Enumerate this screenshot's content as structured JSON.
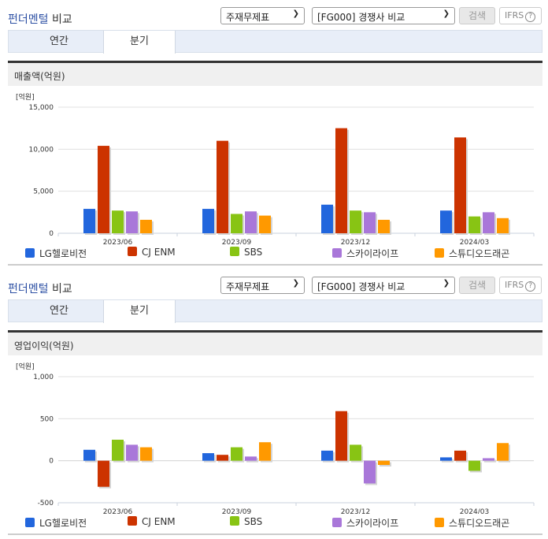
{
  "sections": [
    {
      "title_accent": "펀더멘털",
      "title_rest": "비교",
      "select1": "주재무제표",
      "select2": "[FG000] 경쟁사 비교",
      "search_label": "검색",
      "ifrs_label": "IFRS",
      "help_icon": "?",
      "tabs": [
        {
          "label": "연간"
        },
        {
          "label": "분기"
        }
      ],
      "active_tab": "분기",
      "panel_title": "매출액(억원)"
    },
    {
      "title_accent": "펀더멘털",
      "title_rest": "비교",
      "select1": "주재무제표",
      "select2": "[FG000] 경쟁사 비교",
      "search_label": "검색",
      "ifrs_label": "IFRS",
      "help_icon": "?",
      "tabs": [
        {
          "label": "연간"
        },
        {
          "label": "분기"
        }
      ],
      "active_tab": "분기",
      "panel_title": "영업이익(억원)"
    }
  ],
  "legend": [
    {
      "name": "LG헬로비전",
      "color": "#2266dd"
    },
    {
      "name": "CJ ENM",
      "color": "#cc3300"
    },
    {
      "name": "SBS",
      "color": "#88c414"
    },
    {
      "name": "스카이라이프",
      "color": "#a977d9"
    },
    {
      "name": "스튜디오드래곤",
      "color": "#ff9900"
    }
  ],
  "chart_data": [
    {
      "type": "bar",
      "title": "매출액(억원)",
      "unit_label": "[억원]",
      "categories": [
        "2023/06",
        "2023/09",
        "2023/12",
        "2024/03"
      ],
      "yticks": [
        "15,000",
        "10,000",
        "5,000",
        "0"
      ],
      "ylim": [
        0,
        15000
      ],
      "series": [
        {
          "name": "LG헬로비전",
          "values": [
            2900,
            2900,
            3400,
            2700
          ]
        },
        {
          "name": "CJ ENM",
          "values": [
            10400,
            11000,
            12500,
            11400
          ]
        },
        {
          "name": "SBS",
          "values": [
            2700,
            2300,
            2700,
            2000
          ]
        },
        {
          "name": "스카이라이프",
          "values": [
            2600,
            2600,
            2500,
            2500
          ]
        },
        {
          "name": "스튜디오드래곤",
          "values": [
            1600,
            2100,
            1600,
            1800
          ]
        }
      ]
    },
    {
      "type": "bar",
      "title": "영업이익(억원)",
      "unit_label": "[억원]",
      "categories": [
        "2023/06",
        "2023/09",
        "2023/12",
        "2024/03"
      ],
      "yticks": [
        "1,000",
        "500",
        "0",
        "-500"
      ],
      "ylim": [
        -500,
        1000
      ],
      "series": [
        {
          "name": "LG헬로비전",
          "values": [
            130,
            90,
            120,
            40
          ]
        },
        {
          "name": "CJ ENM",
          "values": [
            -310,
            70,
            590,
            120
          ]
        },
        {
          "name": "SBS",
          "values": [
            250,
            160,
            190,
            -120
          ]
        },
        {
          "name": "스카이라이프",
          "values": [
            190,
            50,
            -270,
            30
          ]
        },
        {
          "name": "스튜디오드래곤",
          "values": [
            160,
            220,
            -50,
            210
          ]
        }
      ]
    }
  ]
}
